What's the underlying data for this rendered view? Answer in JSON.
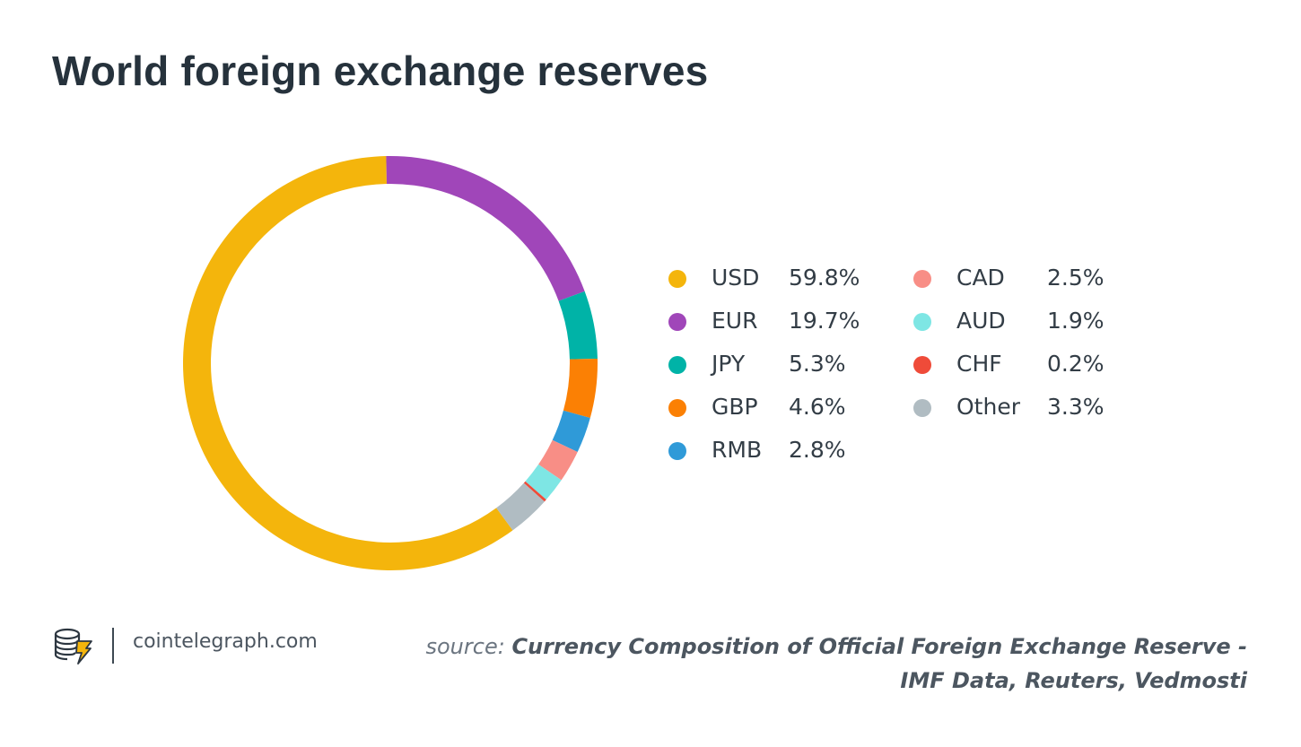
{
  "title": "World foreign exchange reserves",
  "chart_data": {
    "type": "pie",
    "style": "donut",
    "title": "World foreign exchange reserves",
    "legend_position": "right",
    "series": [
      {
        "name": "USD",
        "label": "59.8%",
        "value": 59.8,
        "color": "#f4b50c"
      },
      {
        "name": "EUR",
        "label": "19.7%",
        "value": 19.7,
        "color": "#a046b9"
      },
      {
        "name": "JPY",
        "label": "5.3%",
        "value": 5.3,
        "color": "#00b3a7"
      },
      {
        "name": "GBP",
        "label": "4.6%",
        "value": 4.6,
        "color": "#fb8004"
      },
      {
        "name": "RMB",
        "label": "2.8%",
        "value": 2.8,
        "color": "#2f9ad8"
      },
      {
        "name": "CAD",
        "label": "2.5%",
        "value": 2.5,
        "color": "#f88e86"
      },
      {
        "name": "AUD",
        "label": "1.9%",
        "value": 1.9,
        "color": "#7ee6e4"
      },
      {
        "name": "CHF",
        "label": "0.2%",
        "value": 0.2,
        "color": "#ef4b39"
      },
      {
        "name": "Other",
        "label": "3.3%",
        "value": 3.3,
        "color": "#b0bcc2"
      }
    ]
  },
  "footer": {
    "logo_icon": "cointelegraph-logo-icon",
    "site": "cointelegraph.com",
    "source_prefix": "source:",
    "source_line1": "Currency Composition of Official Foreign Exchange Reserve -",
    "source_line2": "IMF Data, Reuters, Vedmosti"
  }
}
